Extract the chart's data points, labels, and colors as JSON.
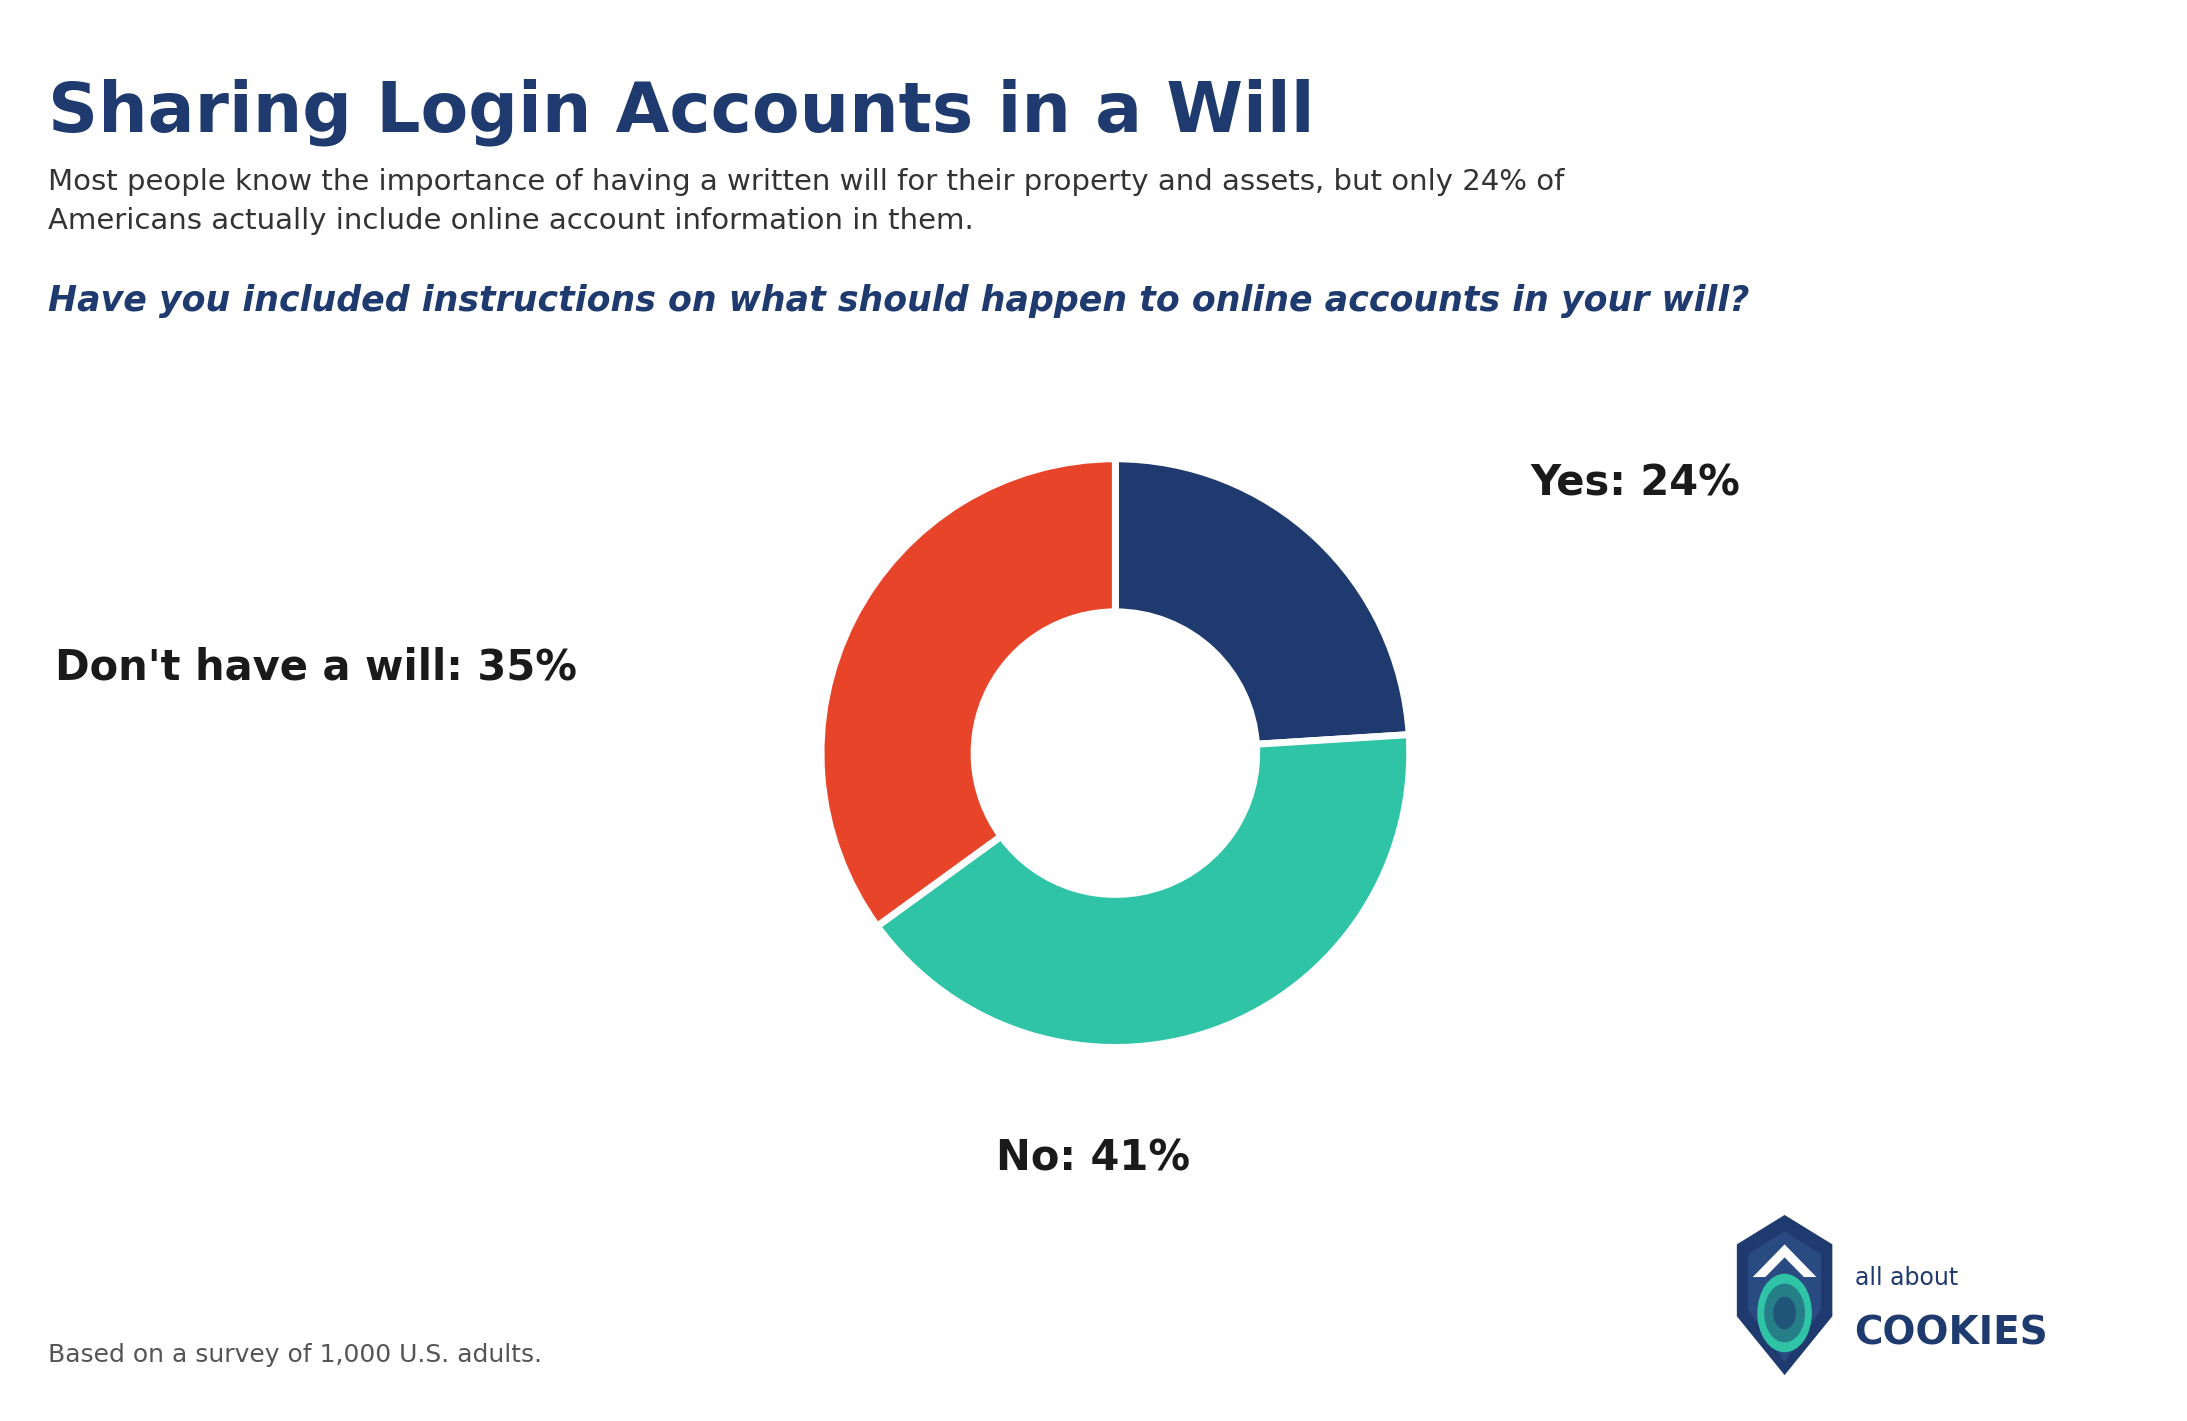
{
  "title": "Sharing Login Accounts in a Will",
  "subtitle": "Most people know the importance of having a written will for their property and assets, but only 24% of\nAmericans actually include online account information in them.",
  "question": "Have you included instructions on what should happen to online accounts in your will?",
  "slices": [
    24,
    41,
    35
  ],
  "labels": [
    "Yes: 24%",
    "No: 41%",
    "Don't have a will: 35%"
  ],
  "colors": [
    "#1f3a6e",
    "#2ec4a5",
    "#e8442a"
  ],
  "title_color": "#1f3a6e",
  "subtitle_color": "#333333",
  "question_color": "#1f3a6e",
  "footer_text": "Based on a survey of 1,000 U.S. adults.",
  "footer_color": "#555555",
  "background_color": "#ffffff",
  "bar_color": "#1f3a6e"
}
